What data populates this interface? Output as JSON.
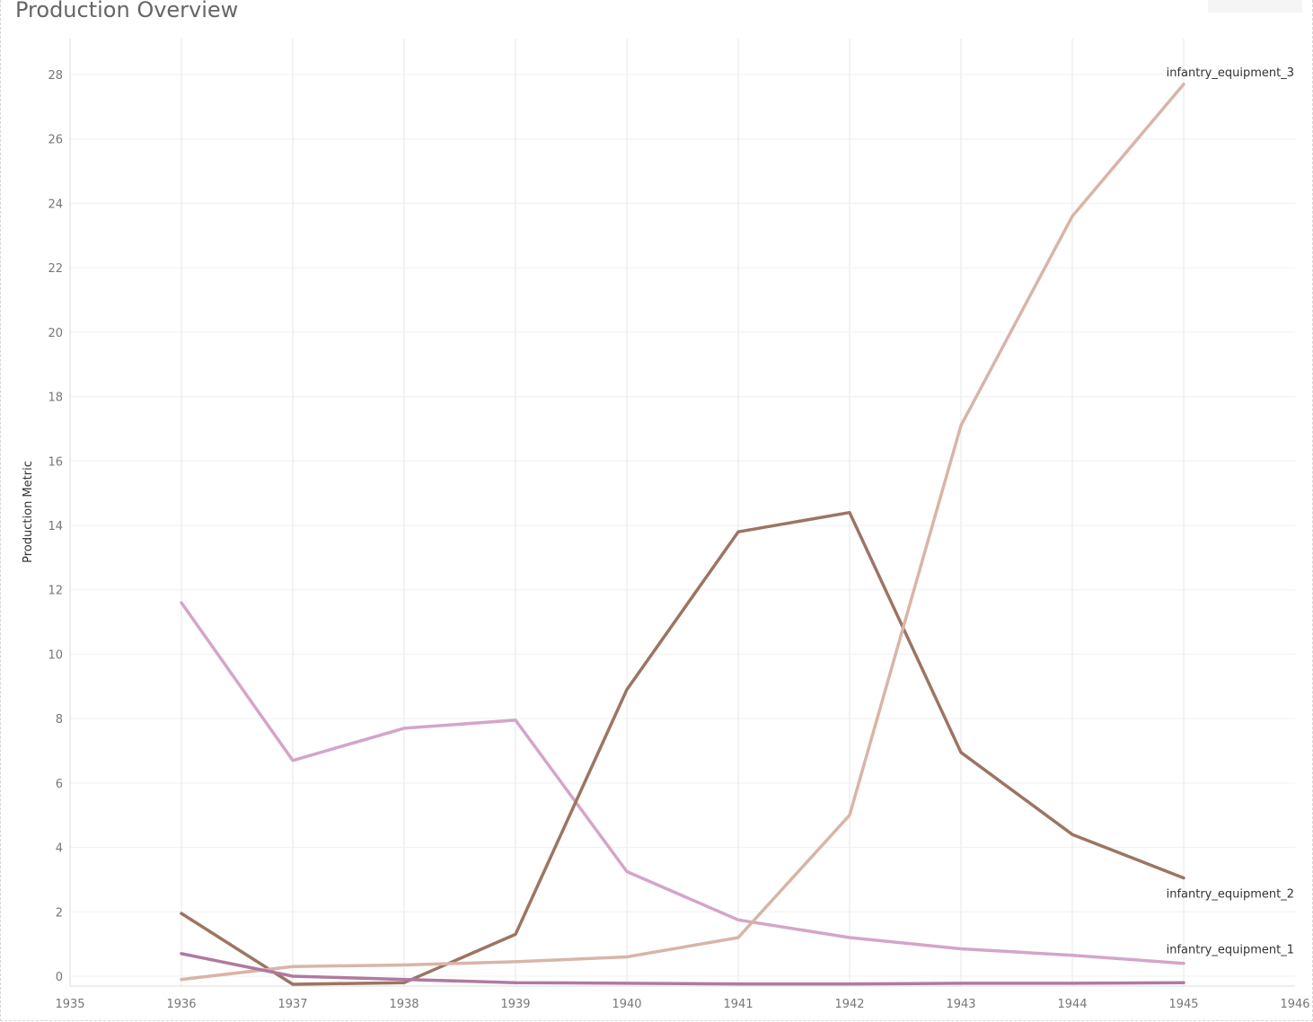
{
  "title": "Production Overview",
  "chart_data": {
    "type": "line",
    "title": "Production Overview",
    "xlabel": "",
    "ylabel": "Production Metric",
    "xlim": [
      1935,
      1946
    ],
    "ylim": [
      -0.4,
      29
    ],
    "x_ticks": [
      1935,
      1936,
      1937,
      1938,
      1939,
      1940,
      1941,
      1942,
      1943,
      1944,
      1945,
      1946
    ],
    "y_ticks": [
      0,
      2,
      4,
      6,
      8,
      10,
      12,
      14,
      16,
      18,
      20,
      22,
      24,
      26,
      28
    ],
    "grid": true,
    "legend": "none (series labeled at line ends)",
    "x": [
      1936,
      1937,
      1938,
      1939,
      1940,
      1941,
      1942,
      1943,
      1944,
      1945
    ],
    "series": [
      {
        "name": "infantry_equipment_1",
        "color": "#d4a5c9",
        "values": [
          11.6,
          6.7,
          7.7,
          7.95,
          3.25,
          1.75,
          1.2,
          0.85,
          0.65,
          0.4
        ],
        "label_position": "end-below"
      },
      {
        "name": "infantry_equipment_2",
        "color": "#9c7562",
        "values": [
          1.95,
          -0.25,
          -0.2,
          1.3,
          8.9,
          13.8,
          14.4,
          6.95,
          4.4,
          3.05
        ],
        "label_position": "end-below"
      },
      {
        "name": "infantry_equipment_3",
        "color": "#d8b5a7",
        "values": [
          -0.1,
          0.3,
          0.35,
          0.45,
          0.6,
          1.2,
          5.0,
          17.1,
          23.6,
          27.7
        ],
        "label_position": "end-above"
      },
      {
        "name": "",
        "color": "#b07aa1",
        "values": [
          0.7,
          0.0,
          -0.1,
          -0.2,
          -0.22,
          -0.24,
          -0.24,
          -0.22,
          -0.22,
          -0.2
        ],
        "label_position": "none"
      }
    ]
  }
}
